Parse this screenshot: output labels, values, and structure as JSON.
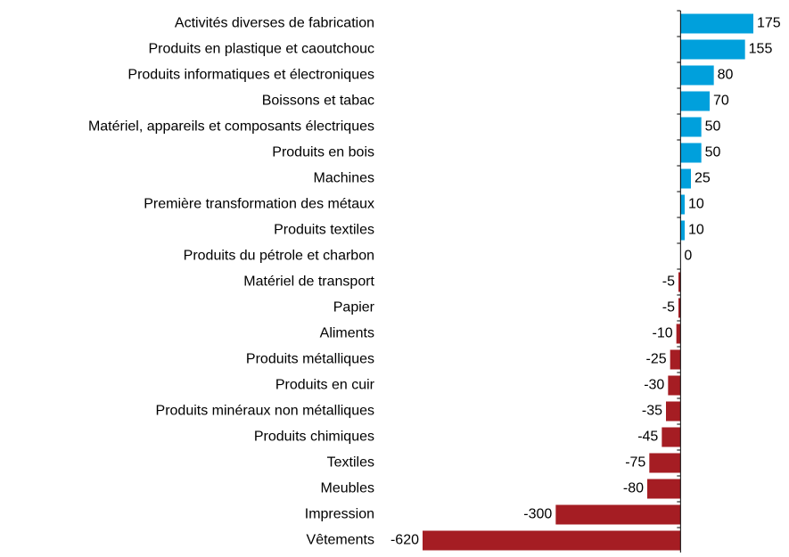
{
  "chart_data": {
    "type": "barh",
    "categories": [
      "Activités diverses de fabrication",
      "Produits en plastique et caoutchouc",
      "Produits informatiques et électroniques",
      "Boissons et tabac",
      "Matériel, appareils et composants électriques",
      "Produits en bois",
      "Machines",
      "Première transformation des métaux",
      "Produits textiles",
      "Produits du pétrole et charbon",
      "Matériel de transport",
      "Papier",
      "Aliments",
      "Produits métalliques",
      "Produits en cuir",
      "Produits minéraux non métalliques",
      "Produits chimiques",
      "Textiles",
      "Meubles",
      "Impression",
      "Vêtements"
    ],
    "values": [
      175,
      155,
      80,
      70,
      50,
      50,
      25,
      10,
      10,
      0,
      -5,
      -5,
      -10,
      -25,
      -30,
      -35,
      -45,
      -75,
      -80,
      -300,
      -620
    ],
    "positive_color": "#00a0dc",
    "negative_color": "#a51d23",
    "xlim": [
      -620,
      175
    ]
  }
}
